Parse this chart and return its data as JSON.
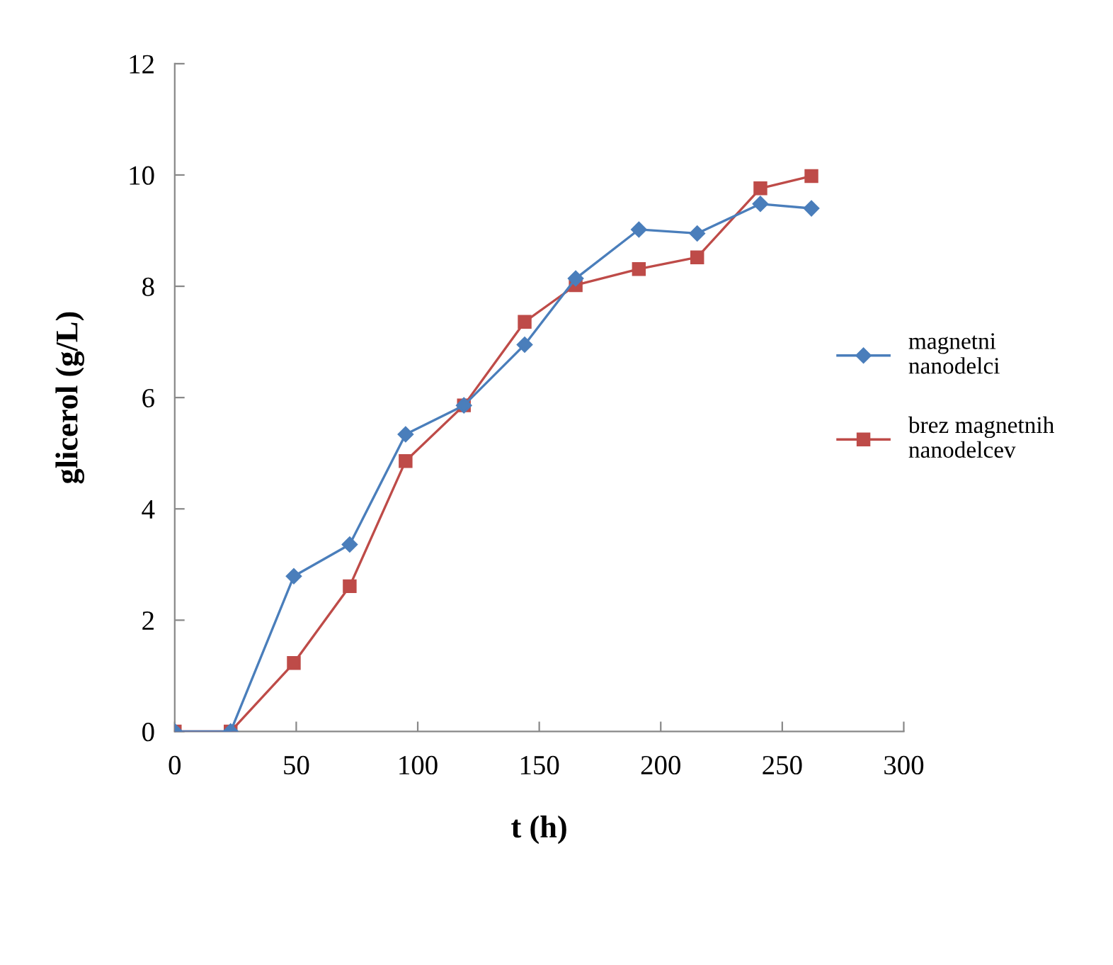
{
  "chart_data": {
    "type": "line",
    "xlabel": "t (h)",
    "ylabel": "glicerol (g/L)",
    "x": [
      0,
      23,
      49,
      72,
      95,
      119,
      144,
      165,
      191,
      215,
      241,
      262
    ],
    "series": [
      {
        "name": "magnetni nanodelci",
        "color": "#4a7ebb",
        "marker": "diamond",
        "values": [
          0,
          0,
          2.79,
          3.36,
          5.34,
          5.86,
          6.95,
          8.14,
          9.02,
          8.95,
          9.48,
          9.4
        ]
      },
      {
        "name": "brez magnetnih nanodelcev",
        "color": "#be4b48",
        "marker": "square",
        "values": [
          0,
          0,
          1.23,
          2.61,
          4.86,
          5.86,
          7.36,
          8.02,
          8.31,
          8.52,
          9.76,
          9.98
        ]
      }
    ],
    "xlim": [
      0,
      300
    ],
    "xticks": [
      0,
      50,
      100,
      150,
      200,
      250,
      300
    ],
    "ylim": [
      0,
      12
    ],
    "yticks": [
      0,
      2,
      4,
      6,
      8,
      10,
      12
    ],
    "grid": false,
    "legend": "right",
    "line_style": "solid"
  }
}
